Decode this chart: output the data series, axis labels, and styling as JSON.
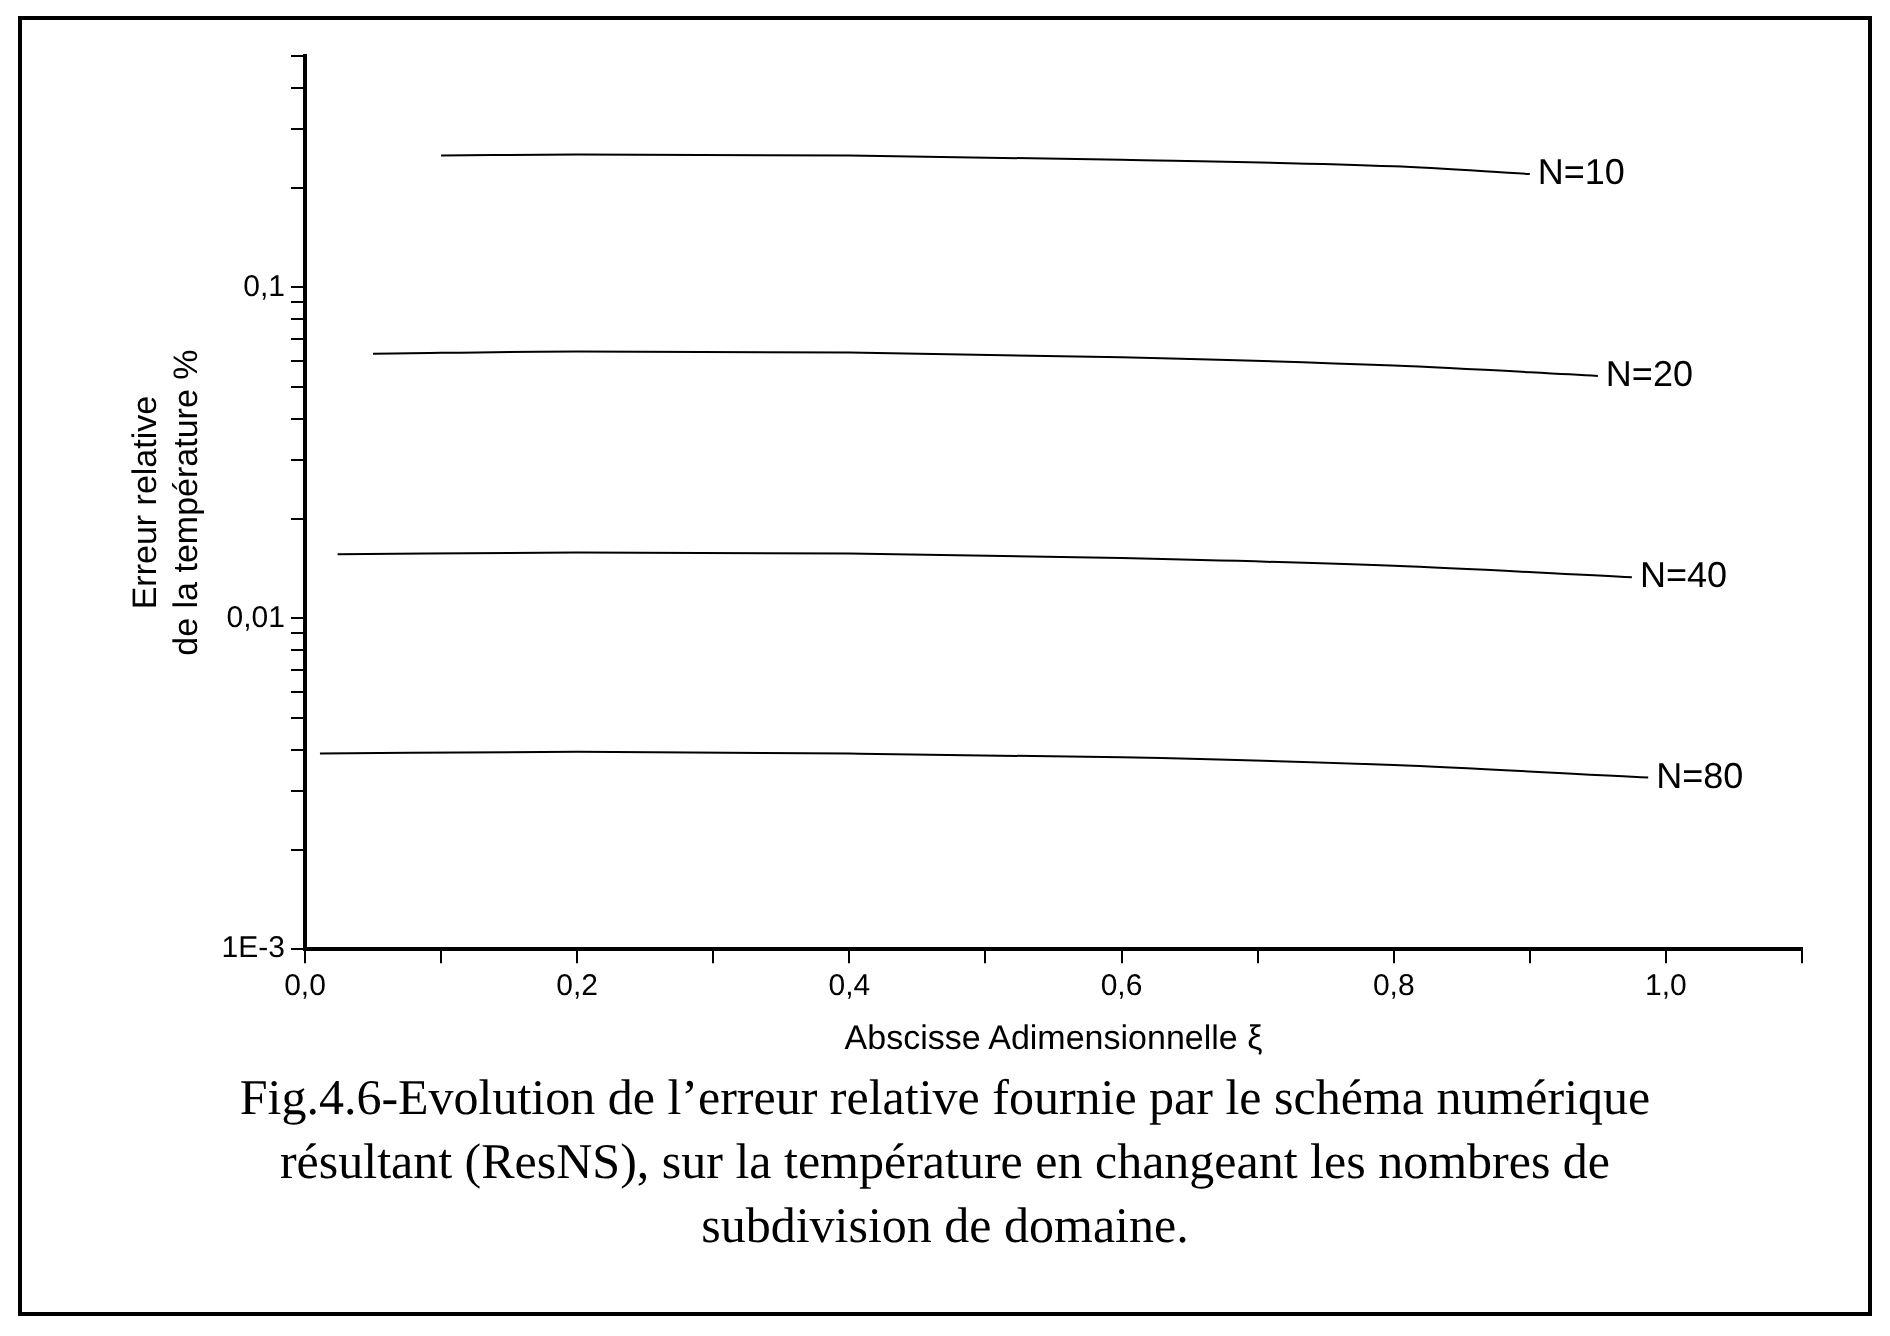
{
  "chart_data": {
    "type": "line",
    "xlabel": "Abscisse Adimensionnelle ξ",
    "ylabel": "Erreur relative\nde la température %",
    "log": "y",
    "grid": false,
    "legend": false,
    "marker": "none",
    "line_style": "solid",
    "xlim": [
      0,
      1.1
    ],
    "xticks": [
      {
        "value": 0,
        "label": "0,0"
      },
      {
        "value": 0.1,
        "label": null
      },
      {
        "value": 0.2,
        "label": "0,2"
      },
      {
        "value": 0.3,
        "label": null
      },
      {
        "value": 0.4,
        "label": "0,4"
      },
      {
        "value": 0.5,
        "label": null
      },
      {
        "value": 0.6,
        "label": "0,6"
      },
      {
        "value": 0.7,
        "label": null
      },
      {
        "value": 0.8,
        "label": "0,8"
      },
      {
        "value": 0.9,
        "label": null
      },
      {
        "value": 1,
        "label": "1,0"
      },
      {
        "value": 1.1,
        "label": null
      }
    ],
    "ylim": [
      0.001,
      0.5
    ],
    "yticks": [
      {
        "value": 0.001,
        "label": "1E-3"
      },
      {
        "value": 0.002,
        "label": null
      },
      {
        "value": 0.003,
        "label": null
      },
      {
        "value": 0.004,
        "label": null
      },
      {
        "value": 0.005,
        "label": null
      },
      {
        "value": 0.006,
        "label": null
      },
      {
        "value": 0.007,
        "label": null
      },
      {
        "value": 0.008,
        "label": null
      },
      {
        "value": 0.009,
        "label": null
      },
      {
        "value": 0.01,
        "label": "0,01"
      },
      {
        "value": 0.02,
        "label": null
      },
      {
        "value": 0.03,
        "label": null
      },
      {
        "value": 0.04,
        "label": null
      },
      {
        "value": 0.05,
        "label": null
      },
      {
        "value": 0.06,
        "label": null
      },
      {
        "value": 0.07,
        "label": null
      },
      {
        "value": 0.08,
        "label": null
      },
      {
        "value": 0.09,
        "label": null
      },
      {
        "value": 0.1,
        "label": "0,1"
      },
      {
        "value": 0.2,
        "label": null
      },
      {
        "value": 0.3,
        "label": null
      },
      {
        "value": 0.4,
        "label": null
      },
      {
        "value": 0.5,
        "label": null
      }
    ],
    "series": [
      {
        "name": "N=10",
        "color": "#000000",
        "x": [
          0.1,
          0.2,
          0.4,
          0.6,
          0.8,
          0.9
        ],
        "values": [
          0.25,
          0.252,
          0.25,
          0.243,
          0.232,
          0.22
        ]
      },
      {
        "name": "N=20",
        "color": "#000000",
        "x": [
          0.05,
          0.2,
          0.4,
          0.6,
          0.8,
          0.95
        ],
        "values": [
          0.063,
          0.064,
          0.0635,
          0.0615,
          0.058,
          0.054
        ]
      },
      {
        "name": "N=40",
        "color": "#000000",
        "x": [
          0.024,
          0.2,
          0.4,
          0.6,
          0.8,
          0.975
        ],
        "values": [
          0.0156,
          0.0158,
          0.0157,
          0.0152,
          0.0144,
          0.0133
        ]
      },
      {
        "name": "N=80",
        "color": "#000000",
        "x": [
          0.011,
          0.2,
          0.4,
          0.6,
          0.8,
          0.987
        ],
        "values": [
          0.0039,
          0.00395,
          0.0039,
          0.0038,
          0.0036,
          0.0033
        ]
      }
    ],
    "annotations": [
      "Fig.4.6-Evolution de l’erreur relative fournie par le schéma numérique résultant (ResNS), sur la température en changeant les nombres de subdivision de domaine."
    ]
  }
}
